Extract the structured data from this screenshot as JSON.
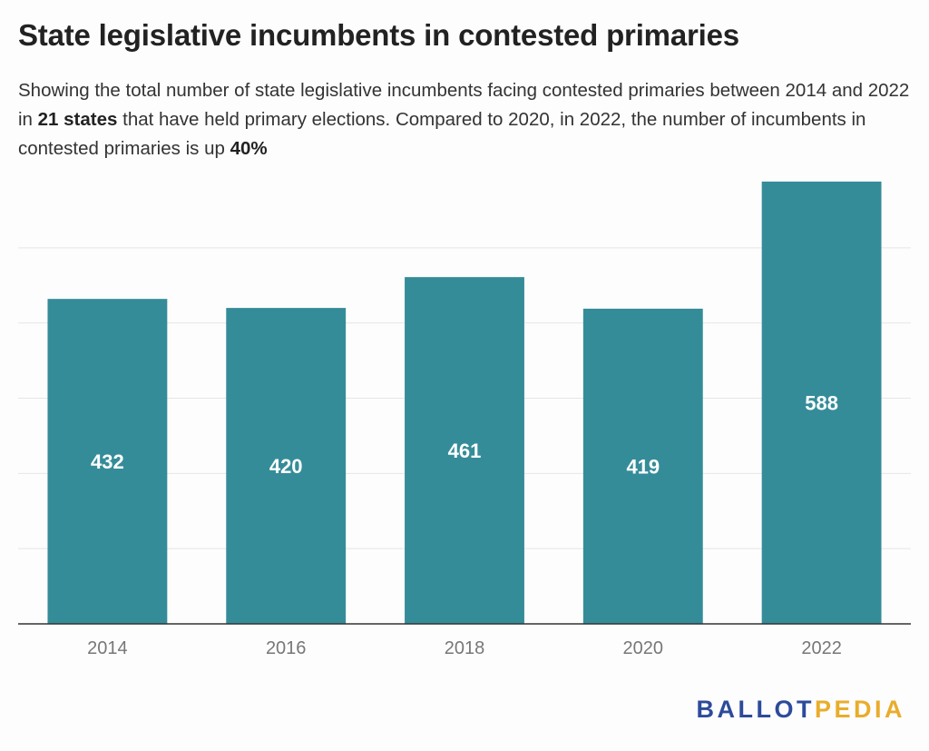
{
  "title": "State legislative incumbents in contested primaries",
  "subtitle": {
    "part1": "Showing the total number of state legislative incumbents facing contested primaries between 2014 and 2022 in ",
    "bold1": "21 states",
    "part2": " that have held primary elections. Compared to 2020, in 2022, the number of incumbents in contested primaries is up ",
    "bold2": "40%"
  },
  "chart_data": {
    "type": "bar",
    "categories": [
      "2014",
      "2016",
      "2018",
      "2020",
      "2022"
    ],
    "values": [
      432,
      420,
      461,
      419,
      588
    ],
    "ylim": [
      0,
      600
    ],
    "grid": true,
    "colors": {
      "bar": "#358c99",
      "label": "#ffffff",
      "axis": "#333333",
      "grid": "#e6e6e6",
      "tick": "#777777"
    }
  },
  "brand": {
    "part1": "BALLOT",
    "part2": "PEDIA"
  }
}
